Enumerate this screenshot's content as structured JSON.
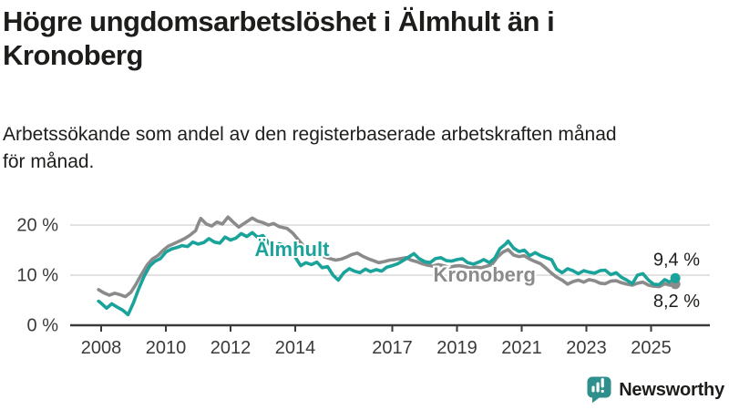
{
  "header": {
    "title": "Högre ungdomsarbetslöshet i Älmhult än i Kronoberg",
    "title_lines": [
      "Högre ungdomsarbetslöshet i Älmhult än i",
      "Kronoberg"
    ],
    "subtitle": "Arbetssökande som andel av den registerbaserade arbetskraften månad för månad.",
    "subtitle_lines": [
      "Arbetssökande som andel av den registerbaserade arbetskraften månad",
      "för månad."
    ]
  },
  "footer": {
    "brand": "Newsworthy",
    "logo_icon": "bar-chart-speech-bubble-icon"
  },
  "colors": {
    "almhult": "#1aa39a",
    "kronoberg": "#8b8b8b",
    "axis": "#3a3a3a",
    "grid": "#d9d9d9",
    "text": "#1d1d1b",
    "logo": "#2e8f8c"
  },
  "chart_data": {
    "type": "line",
    "unit": "%",
    "x_ticks": [
      2008,
      2010,
      2012,
      2014,
      2017,
      2019,
      2021,
      2023,
      2025
    ],
    "x_tick_labels": [
      "2008",
      "2010",
      "2012",
      "2014",
      "2017",
      "2019",
      "2021",
      "2023",
      "2025"
    ],
    "y_ticks": [
      0,
      10,
      20
    ],
    "y_tick_labels": [
      "0 %",
      "10 %",
      "20 %"
    ],
    "x_range": [
      2007.8,
      2026.8
    ],
    "y_range": [
      0,
      22
    ],
    "grid": true,
    "legend_position": "inline-labels",
    "series": [
      {
        "id": "almhult",
        "name": "Älmhult",
        "color": "#1aa39a",
        "end_label": "9,4 %",
        "end_label_side": "above",
        "label": {
          "x": 2013.9,
          "y": 15.1
        },
        "points": [
          [
            2007.92,
            4.8
          ],
          [
            2008.0,
            4.4
          ],
          [
            2008.17,
            3.4
          ],
          [
            2008.33,
            4.3
          ],
          [
            2008.5,
            3.6
          ],
          [
            2008.67,
            3.0
          ],
          [
            2008.83,
            2.1
          ],
          [
            2009.0,
            4.5
          ],
          [
            2009.17,
            7.4
          ],
          [
            2009.33,
            9.8
          ],
          [
            2009.5,
            11.8
          ],
          [
            2009.67,
            12.8
          ],
          [
            2009.83,
            13.3
          ],
          [
            2010.0,
            14.6
          ],
          [
            2010.17,
            15.2
          ],
          [
            2010.33,
            15.5
          ],
          [
            2010.5,
            15.9
          ],
          [
            2010.67,
            15.7
          ],
          [
            2010.83,
            16.6
          ],
          [
            2011.0,
            16.2
          ],
          [
            2011.17,
            16.5
          ],
          [
            2011.33,
            17.3
          ],
          [
            2011.5,
            16.6
          ],
          [
            2011.67,
            16.4
          ],
          [
            2011.83,
            17.6
          ],
          [
            2012.0,
            17.0
          ],
          [
            2012.17,
            17.4
          ],
          [
            2012.33,
            18.3
          ],
          [
            2012.5,
            17.7
          ],
          [
            2012.67,
            18.5
          ],
          [
            2012.83,
            17.6
          ],
          [
            2013.0,
            17.9
          ],
          [
            2013.17,
            16.5
          ],
          [
            2013.33,
            15.0
          ],
          [
            2013.5,
            16.3
          ],
          [
            2013.67,
            15.9
          ],
          [
            2013.83,
            15.3
          ],
          [
            2014.0,
            13.6
          ],
          [
            2014.17,
            11.9
          ],
          [
            2014.33,
            12.5
          ],
          [
            2014.5,
            12.1
          ],
          [
            2014.67,
            12.6
          ],
          [
            2014.83,
            11.5
          ],
          [
            2015.0,
            11.7
          ],
          [
            2015.17,
            10.0
          ],
          [
            2015.33,
            9.0
          ],
          [
            2015.5,
            10.5
          ],
          [
            2015.67,
            11.3
          ],
          [
            2015.83,
            10.8
          ],
          [
            2016.0,
            10.5
          ],
          [
            2016.17,
            11.2
          ],
          [
            2016.33,
            10.7
          ],
          [
            2016.5,
            11.1
          ],
          [
            2016.67,
            10.8
          ],
          [
            2016.83,
            11.6
          ],
          [
            2017.0,
            11.9
          ],
          [
            2017.17,
            12.3
          ],
          [
            2017.33,
            12.9
          ],
          [
            2017.5,
            13.6
          ],
          [
            2017.67,
            14.3
          ],
          [
            2017.83,
            13.3
          ],
          [
            2018.0,
            12.7
          ],
          [
            2018.17,
            12.5
          ],
          [
            2018.33,
            13.3
          ],
          [
            2018.5,
            13.5
          ],
          [
            2018.67,
            12.9
          ],
          [
            2018.83,
            12.8
          ],
          [
            2019.0,
            13.1
          ],
          [
            2019.17,
            13.3
          ],
          [
            2019.33,
            12.5
          ],
          [
            2019.5,
            12.2
          ],
          [
            2019.67,
            12.6
          ],
          [
            2019.83,
            13.1
          ],
          [
            2020.0,
            12.5
          ],
          [
            2020.17,
            13.4
          ],
          [
            2020.33,
            15.3
          ],
          [
            2020.5,
            16.2
          ],
          [
            2020.58,
            16.8
          ],
          [
            2020.75,
            15.4
          ],
          [
            2020.92,
            14.7
          ],
          [
            2021.08,
            15.0
          ],
          [
            2021.25,
            13.9
          ],
          [
            2021.42,
            14.5
          ],
          [
            2021.58,
            13.9
          ],
          [
            2021.75,
            13.5
          ],
          [
            2021.92,
            13.1
          ],
          [
            2022.08,
            11.2
          ],
          [
            2022.25,
            10.5
          ],
          [
            2022.42,
            11.3
          ],
          [
            2022.58,
            10.9
          ],
          [
            2022.75,
            10.3
          ],
          [
            2022.92,
            10.9
          ],
          [
            2023.08,
            10.6
          ],
          [
            2023.25,
            10.4
          ],
          [
            2023.42,
            10.9
          ],
          [
            2023.58,
            11.0
          ],
          [
            2023.75,
            10.1
          ],
          [
            2023.92,
            10.5
          ],
          [
            2024.08,
            9.6
          ],
          [
            2024.25,
            9.0
          ],
          [
            2024.42,
            8.3
          ],
          [
            2024.58,
            10.0
          ],
          [
            2024.75,
            10.3
          ],
          [
            2024.92,
            9.0
          ],
          [
            2025.08,
            8.2
          ],
          [
            2025.25,
            8.1
          ],
          [
            2025.42,
            9.1
          ],
          [
            2025.58,
            8.6
          ],
          [
            2025.75,
            9.4
          ]
        ]
      },
      {
        "id": "kronoberg",
        "name": "Kronoberg",
        "color": "#8b8b8b",
        "end_label": "8,2 %",
        "end_label_side": "below",
        "label": {
          "x": 2019.85,
          "y": 10.0
        },
        "points": [
          [
            2007.92,
            7.1
          ],
          [
            2008.08,
            6.5
          ],
          [
            2008.25,
            6.0
          ],
          [
            2008.42,
            6.4
          ],
          [
            2008.58,
            6.1
          ],
          [
            2008.75,
            5.7
          ],
          [
            2008.92,
            6.6
          ],
          [
            2009.08,
            8.2
          ],
          [
            2009.25,
            10.2
          ],
          [
            2009.42,
            12.0
          ],
          [
            2009.58,
            13.2
          ],
          [
            2009.75,
            13.9
          ],
          [
            2009.92,
            15.0
          ],
          [
            2010.08,
            15.8
          ],
          [
            2010.25,
            16.3
          ],
          [
            2010.42,
            16.8
          ],
          [
            2010.58,
            17.3
          ],
          [
            2010.75,
            18.0
          ],
          [
            2010.92,
            18.9
          ],
          [
            2011.0,
            20.2
          ],
          [
            2011.08,
            21.3
          ],
          [
            2011.25,
            20.2
          ],
          [
            2011.42,
            19.8
          ],
          [
            2011.58,
            20.6
          ],
          [
            2011.75,
            20.2
          ],
          [
            2011.92,
            21.6
          ],
          [
            2012.08,
            20.6
          ],
          [
            2012.25,
            19.6
          ],
          [
            2012.42,
            20.3
          ],
          [
            2012.58,
            21.0
          ],
          [
            2012.67,
            21.4
          ],
          [
            2012.83,
            20.8
          ],
          [
            2013.0,
            20.5
          ],
          [
            2013.17,
            20.0
          ],
          [
            2013.33,
            20.3
          ],
          [
            2013.5,
            19.7
          ],
          [
            2013.75,
            19.3
          ],
          [
            2013.92,
            18.4
          ],
          [
            2014.08,
            17.2
          ],
          [
            2014.25,
            15.9
          ],
          [
            2014.42,
            14.4
          ],
          [
            2014.58,
            13.7
          ],
          [
            2014.75,
            14.0
          ],
          [
            2014.92,
            13.6
          ],
          [
            2015.08,
            13.3
          ],
          [
            2015.25,
            13.0
          ],
          [
            2015.42,
            13.2
          ],
          [
            2015.58,
            13.6
          ],
          [
            2015.75,
            14.1
          ],
          [
            2015.92,
            14.4
          ],
          [
            2016.08,
            13.8
          ],
          [
            2016.25,
            13.3
          ],
          [
            2016.42,
            12.9
          ],
          [
            2016.58,
            12.5
          ],
          [
            2016.75,
            12.7
          ],
          [
            2016.92,
            13.0
          ],
          [
            2017.08,
            13.1
          ],
          [
            2017.25,
            13.3
          ],
          [
            2017.42,
            13.5
          ],
          [
            2017.58,
            13.0
          ],
          [
            2017.75,
            12.7
          ],
          [
            2017.92,
            12.3
          ],
          [
            2018.08,
            12.0
          ],
          [
            2018.25,
            11.8
          ],
          [
            2018.42,
            12.1
          ],
          [
            2018.58,
            11.9
          ],
          [
            2018.75,
            11.6
          ],
          [
            2018.92,
            11.8
          ],
          [
            2019.08,
            11.9
          ],
          [
            2019.25,
            11.7
          ],
          [
            2019.42,
            11.4
          ],
          [
            2019.58,
            11.6
          ],
          [
            2019.75,
            11.5
          ],
          [
            2019.92,
            11.8
          ],
          [
            2020.08,
            12.1
          ],
          [
            2020.25,
            13.6
          ],
          [
            2020.42,
            14.6
          ],
          [
            2020.58,
            15.1
          ],
          [
            2020.75,
            14.0
          ],
          [
            2020.92,
            13.7
          ],
          [
            2021.08,
            13.9
          ],
          [
            2021.25,
            13.2
          ],
          [
            2021.42,
            12.7
          ],
          [
            2021.58,
            12.3
          ],
          [
            2021.75,
            11.4
          ],
          [
            2021.92,
            10.4
          ],
          [
            2022.08,
            9.6
          ],
          [
            2022.25,
            9.0
          ],
          [
            2022.42,
            8.2
          ],
          [
            2022.58,
            8.7
          ],
          [
            2022.75,
            9.0
          ],
          [
            2022.92,
            8.6
          ],
          [
            2023.08,
            9.1
          ],
          [
            2023.25,
            8.9
          ],
          [
            2023.42,
            8.4
          ],
          [
            2023.58,
            8.3
          ],
          [
            2023.75,
            8.8
          ],
          [
            2023.92,
            8.9
          ],
          [
            2024.08,
            8.5
          ],
          [
            2024.25,
            8.2
          ],
          [
            2024.42,
            8.0
          ],
          [
            2024.58,
            8.4
          ],
          [
            2024.75,
            8.6
          ],
          [
            2024.92,
            8.0
          ],
          [
            2025.08,
            7.8
          ],
          [
            2025.25,
            7.7
          ],
          [
            2025.42,
            8.3
          ],
          [
            2025.58,
            8.0
          ],
          [
            2025.75,
            8.2
          ]
        ]
      }
    ]
  }
}
